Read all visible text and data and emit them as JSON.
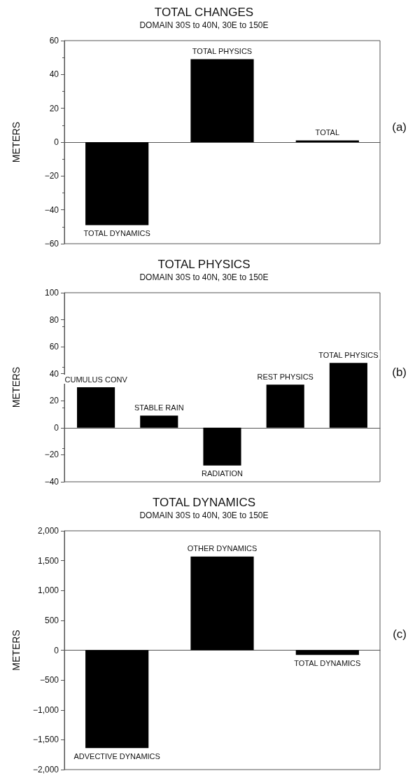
{
  "chart_data": [
    {
      "type": "bar",
      "title": "TOTAL CHANGES",
      "subtitle": "DOMAIN 30S to 40N, 30E to 150E",
      "ylabel": "METERS",
      "annotations": [
        "(a)"
      ],
      "categories": [
        "TOTAL DYNAMICS",
        "TOTAL PHYSICS",
        "TOTAL"
      ],
      "values": [
        -49,
        49,
        1
      ],
      "color": "#000000",
      "ylim": [
        -60,
        60
      ],
      "yticks": [
        {
          "value": -60,
          "label": "−60"
        },
        {
          "value": -40,
          "label": "−40"
        },
        {
          "value": -20,
          "label": "−20"
        },
        0,
        20,
        40,
        60
      ],
      "tick_labels": "y"
    },
    {
      "type": "bar",
      "title": "TOTAL PHYSICS",
      "subtitle": "DOMAIN 30S to 40N, 30E to 150E",
      "ylabel": "METERS",
      "annotations": [
        "(b)"
      ],
      "categories": [
        "CUMULUS CONV",
        "STABLE RAIN",
        "RADIATION",
        "REST PHYSICS",
        "TOTAL PHYSICS"
      ],
      "values": [
        30,
        9,
        -28,
        32,
        48
      ],
      "color": "#000000",
      "ylim": [
        -40,
        100
      ],
      "yticks": [
        {
          "value": -40,
          "label": "−40"
        },
        {
          "value": -20,
          "label": "−20"
        },
        0,
        20,
        40,
        60,
        80,
        100
      ],
      "tick_labels": "y"
    },
    {
      "type": "bar",
      "title": "TOTAL DYNAMICS",
      "subtitle": "DOMAIN 30S to 40N, 30E to 150E",
      "ylabel": "METERS",
      "annotations": [
        "(c)"
      ],
      "categories": [
        "ADVECTIVE DYNAMICS",
        "OTHER DYNAMICS",
        "TOTAL DYNAMICS"
      ],
      "values": [
        -1640,
        1570,
        -80
      ],
      "color": "#000000",
      "ylim": [
        -2000,
        2000
      ],
      "yticks": [
        {
          "value": -2000,
          "label": "−2,000"
        },
        {
          "value": -1500,
          "label": "−1,500"
        },
        {
          "value": -1000,
          "label": "−1,000"
        },
        {
          "value": -500,
          "label": "−500"
        },
        0,
        500,
        {
          "value": 1000,
          "label": "1,000"
        },
        {
          "value": 1500,
          "label": "1,500"
        },
        {
          "value": 2000,
          "label": "2,000"
        }
      ],
      "tick_labels": "y"
    }
  ]
}
